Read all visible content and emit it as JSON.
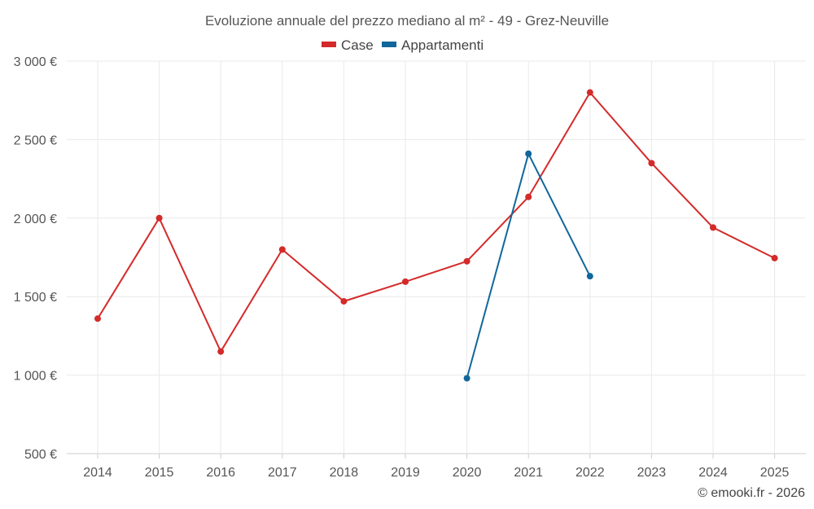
{
  "chart_data": {
    "type": "line",
    "title": "Evoluzione annuale del prezzo mediano al m² - 49 - Grez-Neuville",
    "categories": [
      "2014",
      "2015",
      "2016",
      "2017",
      "2018",
      "2019",
      "2020",
      "2021",
      "2022",
      "2023",
      "2024",
      "2025"
    ],
    "y_tick_labels": [
      "500 €",
      "1 000 €",
      "1 500 €",
      "2 000 €",
      "2 500 €",
      "3 000 €"
    ],
    "y_ticks": [
      500,
      1000,
      1500,
      2000,
      2500,
      3000
    ],
    "ylim": [
      500,
      3000
    ],
    "xlabel": "",
    "ylabel": "",
    "legend_position": "top",
    "series": [
      {
        "name": "Case",
        "color": "#d42a2a",
        "values": [
          1360,
          2000,
          1150,
          1800,
          1470,
          1595,
          1725,
          2135,
          2800,
          2350,
          1940,
          1745
        ]
      },
      {
        "name": "Appartamenti",
        "color": "#10679b",
        "values": [
          null,
          null,
          null,
          null,
          null,
          null,
          980,
          2410,
          1630,
          null,
          null,
          null
        ]
      }
    ],
    "credit": "© emooki.fr - 2026"
  }
}
